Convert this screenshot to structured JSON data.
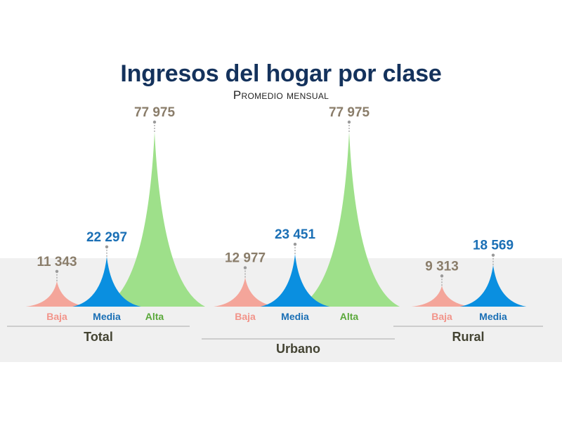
{
  "title": "Ingresos del hogar por clase",
  "subtitle": "Promedio mensual",
  "colors": {
    "baja": "#f4a59a",
    "media": "#0a8fe0",
    "alta": "#9ee08a",
    "label_baja": "#f2948a",
    "label_media": "#1a6fb5",
    "label_alta": "#5aa83a",
    "value_gray": "#8a7d6a",
    "value_media": "#1a6fb5",
    "group_label": "#444433",
    "baseline": "#aaaaaa"
  },
  "chart_data": {
    "type": "bar",
    "title": "Ingresos del hogar por clase",
    "subtitle": "Promedio mensual",
    "groups": [
      {
        "name": "Total",
        "bars": [
          {
            "category": "Baja",
            "value": 11343,
            "label": "11 343"
          },
          {
            "category": "Media",
            "value": 22297,
            "label": "22 297"
          },
          {
            "category": "Alta",
            "value": 77975,
            "label": "77 975"
          }
        ]
      },
      {
        "name": "Urbano",
        "bars": [
          {
            "category": "Baja",
            "value": 12977,
            "label": "12 977"
          },
          {
            "category": "Media",
            "value": 23451,
            "label": "23 451"
          },
          {
            "category": "Alta",
            "value": 77975,
            "label": "77 975"
          }
        ]
      },
      {
        "name": "Rural",
        "bars": [
          {
            "category": "Baja",
            "value": 9313,
            "label": "9 313"
          },
          {
            "category": "Media",
            "value": 18569,
            "label": "18 569"
          }
        ]
      }
    ],
    "ylim": [
      0,
      77975
    ],
    "grid": false,
    "legend": "none"
  }
}
